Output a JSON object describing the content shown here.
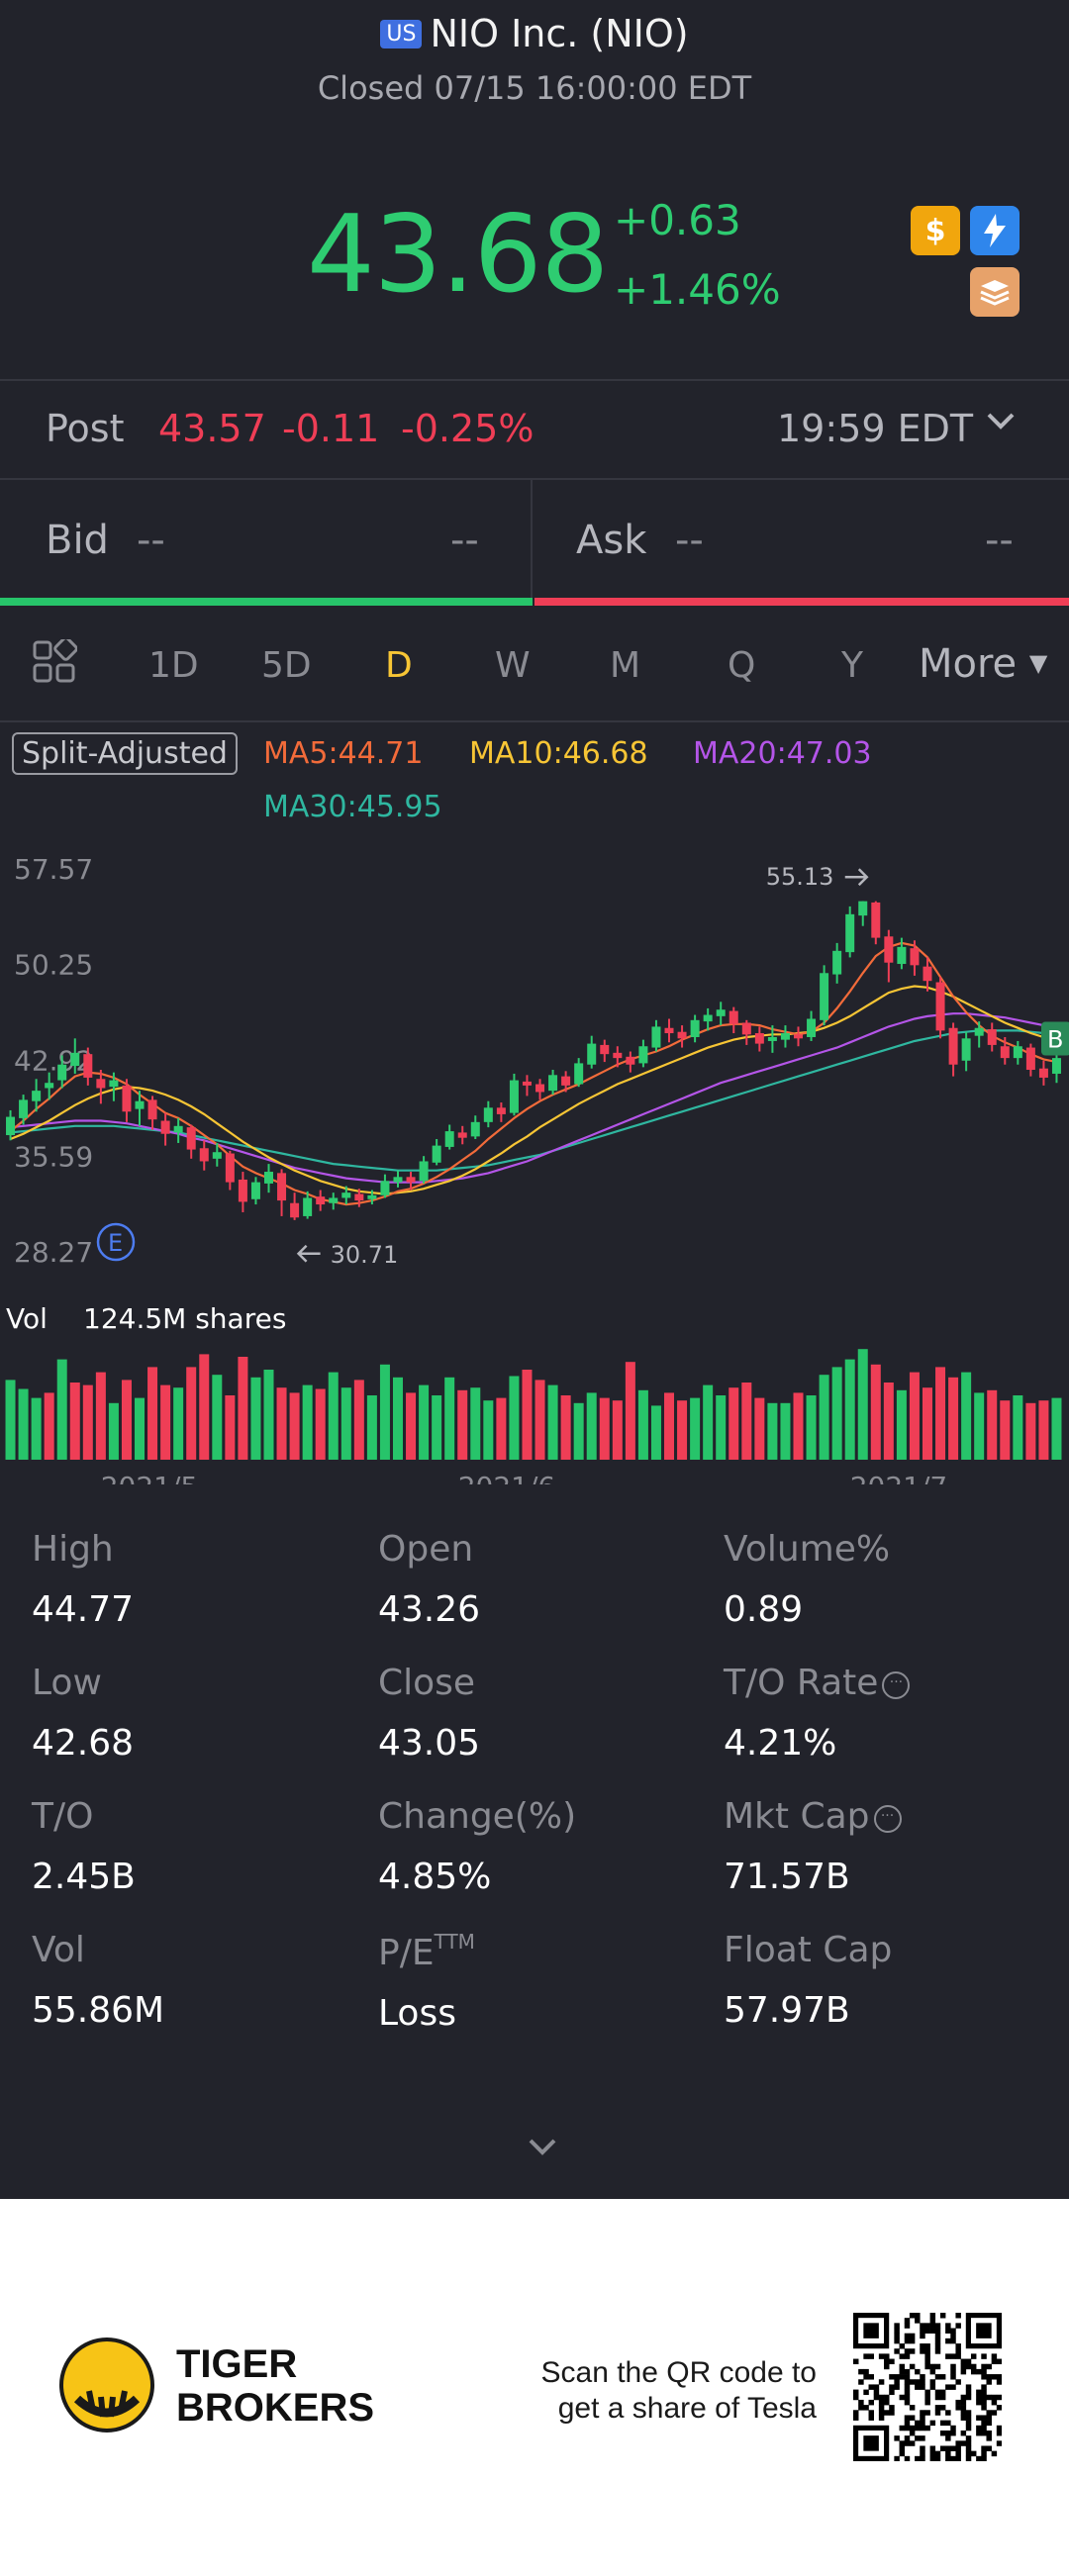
{
  "header": {
    "market_badge": "US",
    "title": "NIO Inc. (NIO)",
    "status": "Closed 07/15 16:00:00 EDT",
    "price": "43.68",
    "change": "+0.63",
    "change_pct": "+1.46%",
    "icons": [
      "dollar-icon",
      "lightning-icon",
      "book-icon"
    ],
    "up_color": "#2ecc71",
    "down_color": "#ef3e56"
  },
  "post": {
    "label": "Post",
    "price": "43.57",
    "change": "-0.11",
    "change_pct": "-0.25%",
    "time": "19:59 EDT"
  },
  "bid": {
    "label": "Bid",
    "value": "--",
    "size": "--"
  },
  "ask": {
    "label": "Ask",
    "value": "--",
    "size": "--"
  },
  "tabs": {
    "items": [
      "1D",
      "5D",
      "D",
      "W",
      "M",
      "Q",
      "Y"
    ],
    "active": "D",
    "more": "More"
  },
  "indicators": {
    "split": "Split-Adjusted",
    "ma5": "MA5:44.71",
    "ma10": "MA10:46.68",
    "ma20": "MA20:47.03",
    "ma30": "MA30:45.95",
    "ma5_color": "#f26b3a",
    "ma10_color": "#f7c535",
    "ma20_color": "#b455e8",
    "ma30_color": "#2fb7a0"
  },
  "chart_data": {
    "type": "candlestick",
    "y_ticks": [
      "57.57",
      "50.25",
      "42.92",
      "35.59",
      "28.27"
    ],
    "ylim": [
      28.27,
      57.57
    ],
    "x_ticks": [
      "2021/5",
      "2021/6",
      "2021/7"
    ],
    "high_marker": "55.13",
    "low_marker": "30.71",
    "earnings_marker": "E",
    "edge_marker": "B",
    "vol_label": "Vol",
    "vol_value": "124.5M shares",
    "candles": [
      [
        37.2,
        38.6,
        36.8,
        39.1
      ],
      [
        38.5,
        39.9,
        38.0,
        40.3
      ],
      [
        39.8,
        40.6,
        39.0,
        41.5
      ],
      [
        40.8,
        41.2,
        39.9,
        42.0
      ],
      [
        41.4,
        42.6,
        40.8,
        43.3
      ],
      [
        42.5,
        43.5,
        41.9,
        44.6
      ],
      [
        43.4,
        41.6,
        41.0,
        43.9
      ],
      [
        41.5,
        40.8,
        39.6,
        42.2
      ],
      [
        40.9,
        41.4,
        39.8,
        42.0
      ],
      [
        41.0,
        39.0,
        38.2,
        41.5
      ],
      [
        39.2,
        39.8,
        37.9,
        40.6
      ],
      [
        39.9,
        38.4,
        37.6,
        40.2
      ],
      [
        38.3,
        37.3,
        36.4,
        38.9
      ],
      [
        37.4,
        37.9,
        36.6,
        38.5
      ],
      [
        37.8,
        36.1,
        35.4,
        38.0
      ],
      [
        36.2,
        35.2,
        34.5,
        36.8
      ],
      [
        35.4,
        35.9,
        34.8,
        36.6
      ],
      [
        35.8,
        33.6,
        33.0,
        36.0
      ],
      [
        33.8,
        32.1,
        31.3,
        34.4
      ],
      [
        32.3,
        33.6,
        31.9,
        34.0
      ],
      [
        33.5,
        34.4,
        32.8,
        35.0
      ],
      [
        34.3,
        32.2,
        31.0,
        34.6
      ],
      [
        32.0,
        30.9,
        30.7,
        32.8
      ],
      [
        31.0,
        32.4,
        30.8,
        32.9
      ],
      [
        32.5,
        31.9,
        31.4,
        33.0
      ],
      [
        32.0,
        32.4,
        31.5,
        32.8
      ],
      [
        32.4,
        32.8,
        31.9,
        33.3
      ],
      [
        32.7,
        32.2,
        31.7,
        33.1
      ],
      [
        32.3,
        32.6,
        31.9,
        33.0
      ],
      [
        32.6,
        33.7,
        32.4,
        34.2
      ],
      [
        33.6,
        34.0,
        33.2,
        34.5
      ],
      [
        34.0,
        33.6,
        33.0,
        34.4
      ],
      [
        33.7,
        35.2,
        33.5,
        35.6
      ],
      [
        35.1,
        36.4,
        34.9,
        36.9
      ],
      [
        36.3,
        37.5,
        36.1,
        38.0
      ],
      [
        37.4,
        37.0,
        36.5,
        37.9
      ],
      [
        37.1,
        38.2,
        36.9,
        38.7
      ],
      [
        38.2,
        39.3,
        37.8,
        39.8
      ],
      [
        39.3,
        38.8,
        38.2,
        39.7
      ],
      [
        38.9,
        41.4,
        38.7,
        41.9
      ],
      [
        41.3,
        41.0,
        40.2,
        41.8
      ],
      [
        41.1,
        40.5,
        39.9,
        41.5
      ],
      [
        40.6,
        41.8,
        40.3,
        42.2
      ],
      [
        41.7,
        41.0,
        40.5,
        42.1
      ],
      [
        41.1,
        42.7,
        40.9,
        43.1
      ],
      [
        42.6,
        44.2,
        42.3,
        44.8
      ],
      [
        44.1,
        43.4,
        42.8,
        44.5
      ],
      [
        43.5,
        43.1,
        42.4,
        44.0
      ],
      [
        43.2,
        42.6,
        42.0,
        43.6
      ],
      [
        42.7,
        44.0,
        42.4,
        44.5
      ],
      [
        43.9,
        45.5,
        43.6,
        46.0
      ],
      [
        45.4,
        45.0,
        44.3,
        46.1
      ],
      [
        45.1,
        44.6,
        43.9,
        45.6
      ],
      [
        44.7,
        46.0,
        44.3,
        46.4
      ],
      [
        45.9,
        46.4,
        45.2,
        46.9
      ],
      [
        46.3,
        46.8,
        45.6,
        47.4
      ],
      [
        46.7,
        45.7,
        45.0,
        47.0
      ],
      [
        45.8,
        44.9,
        44.1,
        46.0
      ],
      [
        45.0,
        44.2,
        43.6,
        45.5
      ],
      [
        44.4,
        44.7,
        43.5,
        45.6
      ],
      [
        44.5,
        45.0,
        43.9,
        45.6
      ],
      [
        44.9,
        44.6,
        44.0,
        45.5
      ],
      [
        44.7,
        46.1,
        44.4,
        46.7
      ],
      [
        46.0,
        49.6,
        45.6,
        50.2
      ],
      [
        49.5,
        51.3,
        48.8,
        51.9
      ],
      [
        51.2,
        54.1,
        50.8,
        54.7
      ],
      [
        54.0,
        55.1,
        53.2,
        55.1
      ],
      [
        55.0,
        52.3,
        51.8,
        55.1
      ],
      [
        52.4,
        50.4,
        48.9,
        52.9
      ],
      [
        50.3,
        51.6,
        49.9,
        52.3
      ],
      [
        51.5,
        50.2,
        49.4,
        52.1
      ],
      [
        50.1,
        49.0,
        48.2,
        50.8
      ],
      [
        48.9,
        45.2,
        44.6,
        49.3
      ],
      [
        45.4,
        42.6,
        41.7,
        45.8
      ],
      [
        42.9,
        44.6,
        42.1,
        45.1
      ],
      [
        44.8,
        45.4,
        43.9,
        45.9
      ],
      [
        45.3,
        44.1,
        43.6,
        45.8
      ],
      [
        44.0,
        43.1,
        42.6,
        44.7
      ],
      [
        43.1,
        44.0,
        42.6,
        44.4
      ],
      [
        43.9,
        42.2,
        41.7,
        44.2
      ],
      [
        42.3,
        41.6,
        41.0,
        42.9
      ],
      [
        41.9,
        43.1,
        41.2,
        43.6
      ]
    ],
    "ma5": [
      37.5,
      38.3,
      39.2,
      40.0,
      40.9,
      41.7,
      42.0,
      41.9,
      41.6,
      41.1,
      40.3,
      39.6,
      38.9,
      38.5,
      37.9,
      37.2,
      36.5,
      35.6,
      34.8,
      34.3,
      33.9,
      33.5,
      33.0,
      32.7,
      32.3,
      32.1,
      31.9,
      32.0,
      32.2,
      32.5,
      32.9,
      33.1,
      33.5,
      34.0,
      34.6,
      35.3,
      36.0,
      36.9,
      37.7,
      38.5,
      39.2,
      39.8,
      40.3,
      40.7,
      41.1,
      41.6,
      42.1,
      42.6,
      43.0,
      43.3,
      43.6,
      44.0,
      44.5,
      44.9,
      45.3,
      45.6,
      45.7,
      45.7,
      45.6,
      45.3,
      45.1,
      44.9,
      45.1,
      45.8,
      46.9,
      48.2,
      49.6,
      50.9,
      51.6,
      51.9,
      51.7,
      50.8,
      49.3,
      47.8,
      46.6,
      45.6,
      44.8,
      44.3,
      43.9,
      43.4,
      43.0,
      42.8
    ],
    "ma10": [
      36.9,
      37.3,
      37.8,
      38.3,
      38.9,
      39.5,
      40.0,
      40.4,
      40.7,
      40.9,
      40.8,
      40.6,
      40.3,
      39.9,
      39.4,
      38.8,
      38.1,
      37.4,
      36.7,
      36.1,
      35.5,
      35.0,
      34.5,
      34.1,
      33.7,
      33.4,
      33.1,
      32.9,
      32.8,
      32.7,
      32.8,
      32.9,
      33.1,
      33.4,
      33.7,
      34.1,
      34.6,
      35.2,
      35.8,
      36.5,
      37.1,
      37.8,
      38.4,
      39.0,
      39.6,
      40.1,
      40.6,
      41.1,
      41.5,
      41.9,
      42.3,
      42.7,
      43.1,
      43.5,
      43.9,
      44.2,
      44.5,
      44.7,
      44.8,
      44.9,
      44.9,
      45.0,
      45.1,
      45.4,
      45.8,
      46.3,
      46.9,
      47.5,
      48.1,
      48.4,
      48.6,
      48.5,
      48.2,
      47.8,
      47.3,
      46.8,
      46.3,
      45.8,
      45.4,
      45.0,
      44.7,
      44.5
    ],
    "ma20": [
      37.8,
      37.9,
      38.0,
      38.1,
      38.2,
      38.3,
      38.3,
      38.3,
      38.2,
      38.1,
      37.9,
      37.7,
      37.5,
      37.3,
      37.0,
      36.8,
      36.5,
      36.2,
      35.9,
      35.6,
      35.3,
      35.0,
      34.7,
      34.5,
      34.3,
      34.1,
      33.9,
      33.8,
      33.7,
      33.6,
      33.6,
      33.6,
      33.6,
      33.7,
      33.8,
      33.9,
      34.1,
      34.3,
      34.6,
      34.9,
      35.2,
      35.6,
      36.0,
      36.4,
      36.8,
      37.2,
      37.6,
      38.0,
      38.4,
      38.8,
      39.2,
      39.6,
      40.0,
      40.4,
      40.8,
      41.2,
      41.5,
      41.8,
      42.1,
      42.4,
      42.7,
      43.0,
      43.3,
      43.6,
      43.9,
      44.3,
      44.7,
      45.1,
      45.5,
      45.8,
      46.1,
      46.3,
      46.4,
      46.5,
      46.5,
      46.4,
      46.3,
      46.2,
      46.0,
      45.8,
      45.6,
      45.4
    ],
    "ma30": [
      37.4,
      37.5,
      37.6,
      37.7,
      37.8,
      37.9,
      37.9,
      37.9,
      37.9,
      37.8,
      37.7,
      37.6,
      37.5,
      37.4,
      37.2,
      37.0,
      36.8,
      36.6,
      36.4,
      36.2,
      36.0,
      35.8,
      35.6,
      35.4,
      35.2,
      35.0,
      34.9,
      34.8,
      34.7,
      34.6,
      34.5,
      34.5,
      34.5,
      34.5,
      34.6,
      34.7,
      34.8,
      34.9,
      35.1,
      35.3,
      35.5,
      35.7,
      36.0,
      36.3,
      36.6,
      36.9,
      37.2,
      37.5,
      37.8,
      38.1,
      38.4,
      38.7,
      39.0,
      39.3,
      39.6,
      39.9,
      40.2,
      40.5,
      40.8,
      41.1,
      41.4,
      41.7,
      42.0,
      42.3,
      42.6,
      42.9,
      43.2,
      43.5,
      43.8,
      44.1,
      44.4,
      44.6,
      44.8,
      45.0,
      45.1,
      45.2,
      45.2,
      45.2,
      45.2,
      45.1,
      45.0,
      45.0
    ],
    "volumes": [
      62,
      55,
      48,
      52,
      78,
      60,
      58,
      68,
      44,
      62,
      48,
      72,
      58,
      56,
      72,
      82,
      66,
      50,
      80,
      64,
      70,
      56,
      52,
      58,
      55,
      68,
      56,
      62,
      50,
      74,
      64,
      52,
      58,
      50,
      64,
      54,
      56,
      46,
      48,
      65,
      70,
      62,
      58,
      50,
      44,
      52,
      48,
      46,
      76,
      54,
      42,
      52,
      46,
      48,
      58,
      50,
      56,
      60,
      48,
      44,
      44,
      52,
      50,
      66,
      72,
      78,
      86,
      74,
      60,
      54,
      68,
      56,
      72,
      64,
      68,
      52,
      54,
      46,
      50,
      44,
      46,
      48
    ],
    "volume_up": [
      true,
      true,
      true,
      false,
      true,
      false,
      false,
      false,
      true,
      false,
      true,
      false,
      false,
      true,
      false,
      false,
      true,
      false,
      false,
      true,
      true,
      false,
      false,
      true,
      false,
      true,
      true,
      false,
      true,
      true,
      true,
      false,
      true,
      true,
      true,
      false,
      true,
      true,
      false,
      true,
      false,
      false,
      true,
      false,
      true,
      true,
      false,
      false,
      false,
      true,
      true,
      false,
      false,
      true,
      true,
      true,
      false,
      false,
      false,
      true,
      true,
      false,
      true,
      true,
      true,
      true,
      true,
      false,
      false,
      true,
      false,
      false,
      false,
      false,
      true,
      true,
      false,
      false,
      true,
      false,
      false,
      true
    ]
  },
  "stats": [
    {
      "label": "High",
      "value": "44.77"
    },
    {
      "label": "Open",
      "value": "43.26"
    },
    {
      "label": "Volume%",
      "value": "0.89"
    },
    {
      "label": "Low",
      "value": "42.68"
    },
    {
      "label": "Close",
      "value": "43.05"
    },
    {
      "label": "T/O Rate",
      "value": "4.21%"
    },
    {
      "label": "T/O",
      "value": "2.45B"
    },
    {
      "label": "Change(%)",
      "value": "4.85%"
    },
    {
      "label": "Mkt Cap",
      "value": "71.57B"
    },
    {
      "label": "Vol",
      "value": "55.86M"
    },
    {
      "label": "P/E",
      "label_sup": "TTM",
      "value": "Loss"
    },
    {
      "label": "Float Cap",
      "value": "57.97B"
    }
  ],
  "footer": {
    "brand_line1": "TIGER",
    "brand_line2": "BROKERS",
    "scan_line1": "Scan the QR code to",
    "scan_line2": "get a share of Tesla"
  }
}
